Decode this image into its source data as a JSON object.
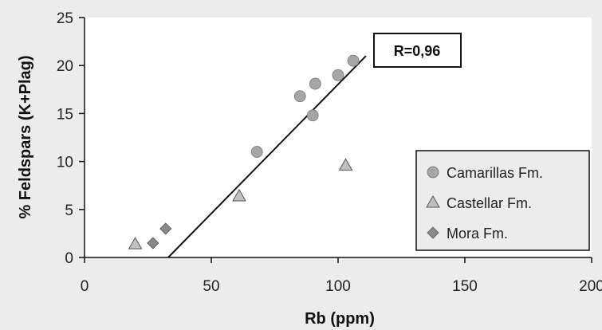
{
  "chart_data": {
    "type": "scatter",
    "xlabel": "Rb (ppm)",
    "ylabel": "% Feldspars (K+Plag)",
    "xlim": [
      0,
      200
    ],
    "ylim": [
      0,
      25
    ],
    "xticks": [
      0,
      50,
      100,
      150,
      200
    ],
    "yticks": [
      0,
      5,
      10,
      15,
      20,
      25
    ],
    "grid": false,
    "legend_position": "bottom-right",
    "series": [
      {
        "name": "Camarillas Fm.",
        "marker": "circle",
        "color": "#a6a6a6",
        "points": [
          {
            "x": 68,
            "y": 11.0
          },
          {
            "x": 85,
            "y": 16.8
          },
          {
            "x": 90,
            "y": 14.8
          },
          {
            "x": 91,
            "y": 18.1
          },
          {
            "x": 100,
            "y": 19.0
          },
          {
            "x": 106,
            "y": 20.5
          }
        ]
      },
      {
        "name": "Castellar Fm.",
        "marker": "triangle",
        "color": "#c0c0c0",
        "points": [
          {
            "x": 20,
            "y": 1.4
          },
          {
            "x": 61,
            "y": 6.4
          },
          {
            "x": 103,
            "y": 9.6
          }
        ]
      },
      {
        "name": "Mora Fm.",
        "marker": "diamond",
        "color": "#8a8a8a",
        "points": [
          {
            "x": 27,
            "y": 1.5
          },
          {
            "x": 32,
            "y": 3.0
          }
        ]
      }
    ],
    "trendline": {
      "x": [
        33,
        111
      ],
      "y": [
        0,
        21
      ]
    },
    "annotation": "R=0,96"
  }
}
